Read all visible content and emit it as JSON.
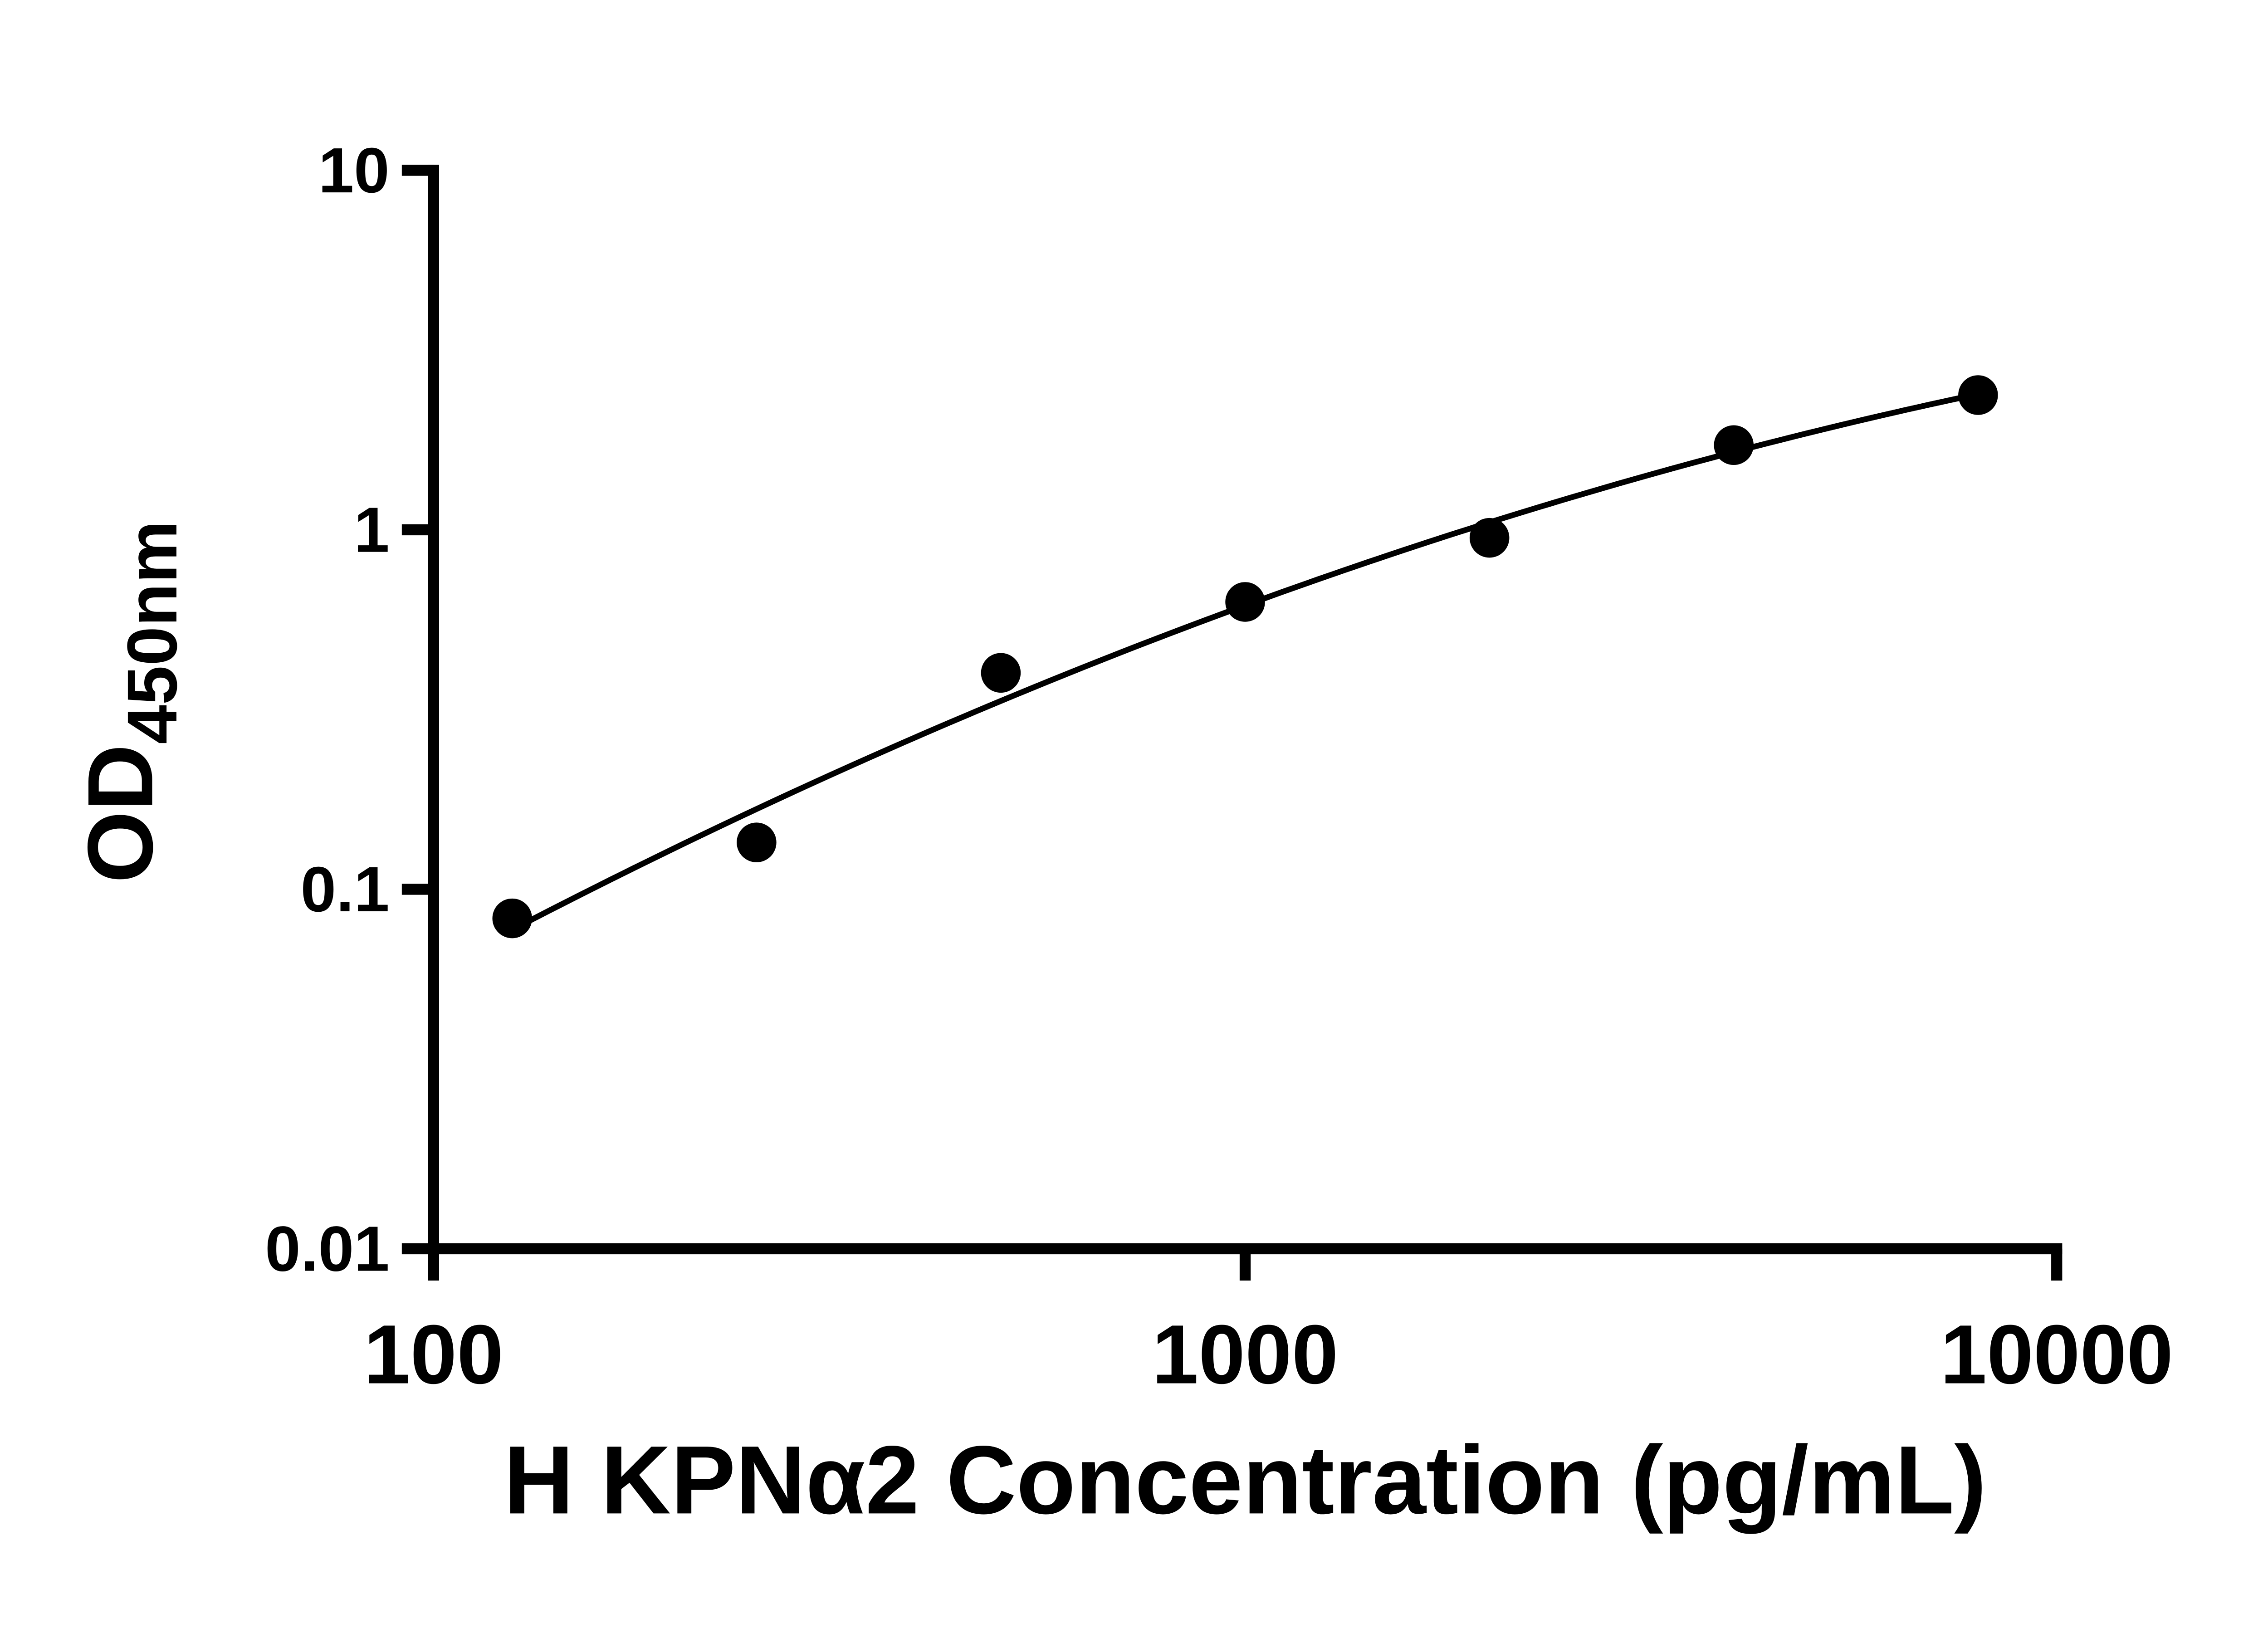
{
  "page": {
    "background": "#ffffff"
  },
  "chart_data": {
    "type": "scatter",
    "title": "",
    "xlabel": "H KPNα2 Concentration (pg/mL)",
    "ylabel_base": "OD",
    "ylabel_subscript": "450nm",
    "x_scale": "log",
    "y_scale": "log",
    "xlim": [
      100,
      10000
    ],
    "ylim": [
      0.01,
      10
    ],
    "grid": false,
    "legend": "none",
    "axis_color": "#000000",
    "x_ticks": [
      {
        "value": 100,
        "label": "100"
      },
      {
        "value": 1000,
        "label": "1000"
      },
      {
        "value": 10000,
        "label": "10000"
      }
    ],
    "y_ticks": [
      {
        "value": 0.01,
        "label": "0.01"
      },
      {
        "value": 0.1,
        "label": "0.1"
      },
      {
        "value": 1,
        "label": "1"
      },
      {
        "value": 10,
        "label": "10"
      }
    ],
    "series": [
      {
        "marker": "circle",
        "color": "#000000",
        "line_color": "#000000",
        "fit_curve": true,
        "points": [
          {
            "x": 125,
            "y": 0.083
          },
          {
            "x": 250,
            "y": 0.135
          },
          {
            "x": 500,
            "y": 0.4
          },
          {
            "x": 1000,
            "y": 0.63
          },
          {
            "x": 2000,
            "y": 0.95
          },
          {
            "x": 4000,
            "y": 1.72
          },
          {
            "x": 8000,
            "y": 2.37
          }
        ]
      }
    ]
  }
}
